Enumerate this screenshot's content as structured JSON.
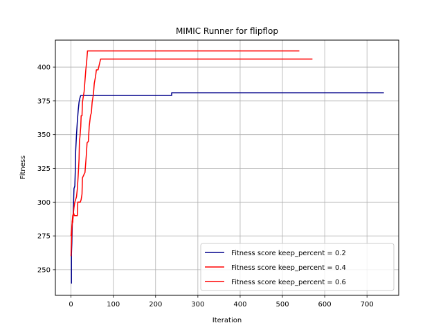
{
  "chart_data": {
    "type": "line",
    "title": "MIMIC Runner for flipflop",
    "xlabel": "Iteration",
    "ylabel": "Fitness",
    "xlim": [
      -37,
      775
    ],
    "ylim": [
      231,
      420
    ],
    "xticks": [
      0,
      100,
      200,
      300,
      400,
      500,
      600,
      700
    ],
    "yticks": [
      250,
      275,
      300,
      325,
      350,
      375,
      400
    ],
    "grid": true,
    "legend_position": "lower-right",
    "series": [
      {
        "name": "Fitness score keep_percent = 0.2",
        "color": "#00008b",
        "points": [
          [
            0,
            240
          ],
          [
            1,
            240
          ],
          [
            1,
            262
          ],
          [
            2,
            270
          ],
          [
            3,
            284
          ],
          [
            4,
            286
          ],
          [
            5,
            290
          ],
          [
            6,
            300
          ],
          [
            7,
            310
          ],
          [
            9,
            312
          ],
          [
            10,
            322
          ],
          [
            11,
            338
          ],
          [
            13,
            350
          ],
          [
            15,
            360
          ],
          [
            17,
            368
          ],
          [
            19,
            374
          ],
          [
            21,
            377
          ],
          [
            23,
            379
          ],
          [
            238,
            379
          ],
          [
            238,
            381
          ],
          [
            740,
            381
          ]
        ]
      },
      {
        "name": "Fitness score keep_percent = 0.4",
        "color": "#ff0000",
        "points": [
          [
            0,
            260
          ],
          [
            1,
            270
          ],
          [
            2,
            280
          ],
          [
            3,
            286
          ],
          [
            4,
            285
          ],
          [
            5,
            290
          ],
          [
            7,
            296
          ],
          [
            9,
            300
          ],
          [
            11,
            302
          ],
          [
            13,
            304
          ],
          [
            15,
            310
          ],
          [
            17,
            320
          ],
          [
            19,
            332
          ],
          [
            20,
            346
          ],
          [
            21,
            348
          ],
          [
            23,
            356
          ],
          [
            24,
            364
          ],
          [
            26,
            364
          ],
          [
            27,
            374
          ],
          [
            29,
            378
          ],
          [
            31,
            382
          ],
          [
            33,
            390
          ],
          [
            35,
            398
          ],
          [
            37,
            404
          ],
          [
            39,
            412
          ],
          [
            540,
            412
          ]
        ]
      },
      {
        "name": "Fitness score keep_percent = 0.6",
        "color": "#ff0000",
        "points": [
          [
            0,
            275
          ],
          [
            2,
            282
          ],
          [
            4,
            290
          ],
          [
            6,
            292
          ],
          [
            8,
            290
          ],
          [
            15,
            290
          ],
          [
            16,
            300
          ],
          [
            22,
            300
          ],
          [
            24,
            302
          ],
          [
            26,
            306
          ],
          [
            27,
            318
          ],
          [
            30,
            320
          ],
          [
            33,
            322
          ],
          [
            36,
            334
          ],
          [
            38,
            344
          ],
          [
            41,
            345
          ],
          [
            43,
            356
          ],
          [
            46,
            364
          ],
          [
            48,
            366
          ],
          [
            50,
            374
          ],
          [
            53,
            380
          ],
          [
            55,
            388
          ],
          [
            58,
            393
          ],
          [
            60,
            398
          ],
          [
            64,
            398
          ],
          [
            67,
            402
          ],
          [
            70,
            406
          ],
          [
            571,
            406
          ]
        ]
      }
    ]
  }
}
